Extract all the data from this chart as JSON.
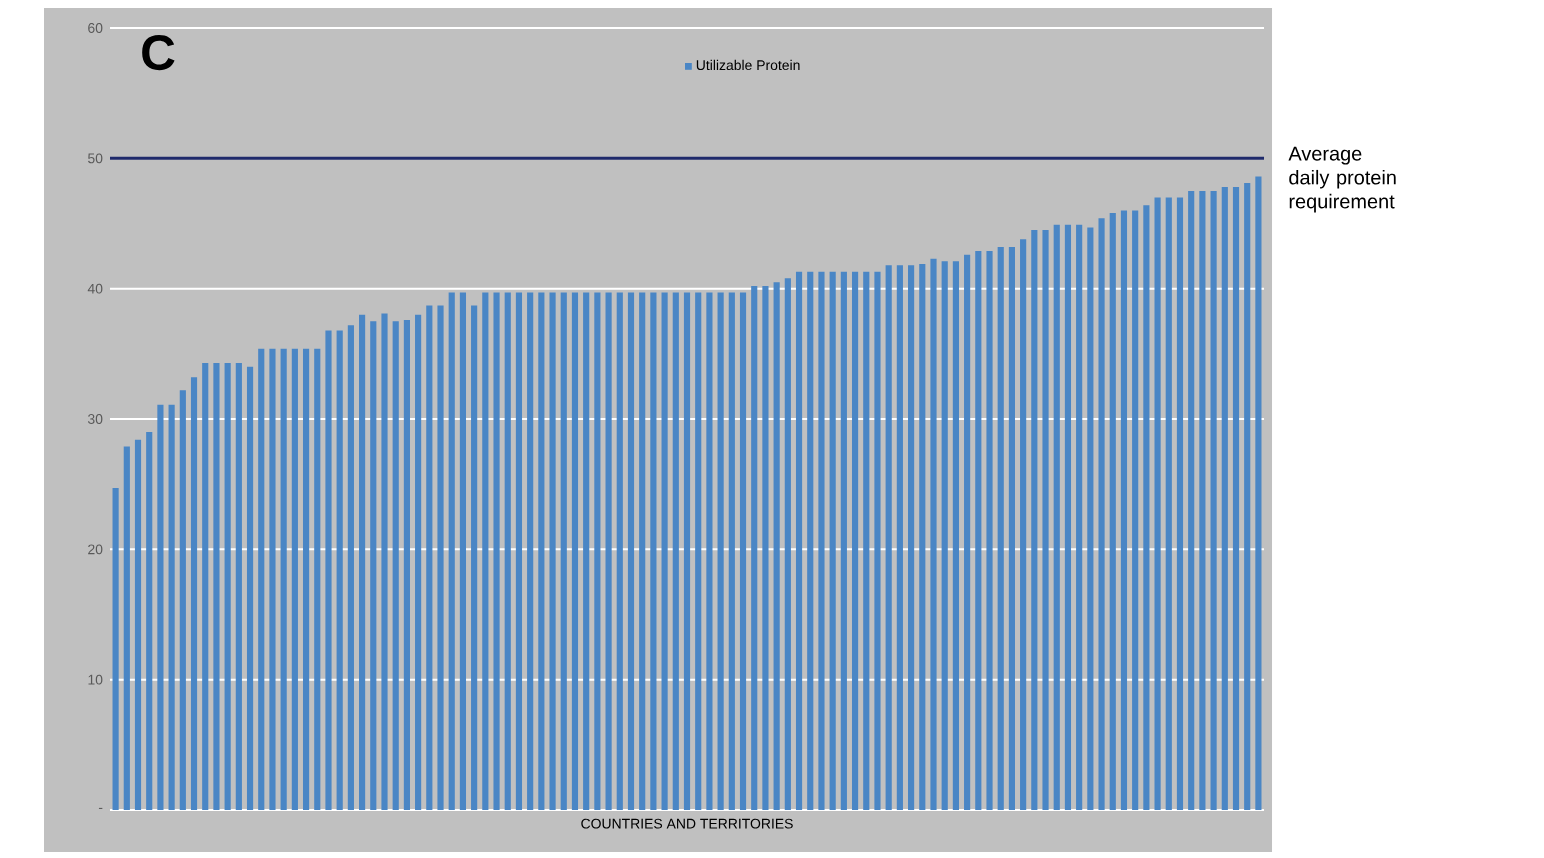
{
  "chart_data": {
    "type": "bar",
    "title": "C",
    "xlabel": "COUNTRIES AND TERRITORIES",
    "categories": [
      null,
      null,
      null,
      null,
      null,
      null,
      null,
      null,
      null,
      null,
      null,
      null,
      null,
      null,
      null,
      null,
      null,
      null,
      null,
      null,
      null,
      null,
      null,
      null,
      null,
      null,
      null,
      null,
      null,
      null,
      null,
      null,
      null,
      null,
      null,
      null,
      null,
      null,
      null,
      null,
      null,
      null,
      null,
      null,
      null,
      null,
      null,
      null,
      null,
      null,
      null,
      null,
      null,
      null,
      null,
      null,
      null,
      null,
      null,
      null,
      null,
      null,
      null,
      null,
      null,
      null,
      null,
      null,
      null,
      null,
      null,
      null,
      null,
      null,
      null,
      null,
      null,
      null,
      null,
      null,
      null,
      null,
      null,
      null,
      null,
      null,
      null,
      null,
      null,
      null,
      null,
      null,
      null,
      null,
      null,
      null,
      null,
      null,
      null,
      null,
      null,
      null,
      null
    ],
    "series": [
      {
        "name": "Utilizable Protein",
        "color": "#4a86c5",
        "values": [
          24.7,
          27.9,
          28.4,
          29.0,
          31.1,
          31.1,
          32.2,
          33.2,
          34.3,
          34.3,
          34.3,
          34.3,
          34.0,
          35.4,
          35.4,
          35.4,
          35.4,
          35.4,
          35.4,
          36.8,
          36.8,
          37.2,
          38.0,
          37.5,
          38.1,
          37.5,
          37.6,
          38.0,
          38.7,
          38.7,
          39.7,
          39.7,
          38.7,
          39.7,
          39.7,
          39.7,
          39.7,
          39.7,
          39.7,
          39.7,
          39.7,
          39.7,
          39.7,
          39.7,
          39.7,
          39.7,
          39.7,
          39.7,
          39.7,
          39.7,
          39.7,
          39.7,
          39.7,
          39.7,
          39.7,
          39.7,
          39.7,
          40.2,
          40.2,
          40.5,
          40.8,
          41.3,
          41.3,
          41.3,
          41.3,
          41.3,
          41.3,
          41.3,
          41.3,
          41.8,
          41.8,
          41.8,
          41.9,
          42.3,
          42.1,
          42.1,
          42.6,
          42.9,
          42.9,
          43.2,
          43.2,
          43.8,
          44.5,
          44.5,
          44.9,
          44.9,
          44.9,
          44.7,
          45.4,
          45.8,
          46.0,
          46.0,
          46.4,
          47.0,
          47.0,
          47.0,
          47.5,
          47.5,
          47.5,
          47.8,
          47.8,
          48.1,
          48.6
        ]
      }
    ],
    "ylim": [
      0,
      60
    ],
    "yticks": [
      {
        "value": 0,
        "label": "-"
      },
      10,
      20,
      30,
      40,
      50,
      60
    ],
    "grid": "y",
    "legend": "top",
    "ref_lines": [
      {
        "axis": "y",
        "value": 50,
        "label": "Average daily protein requirement",
        "color": "#1f2a6b"
      }
    ]
  }
}
